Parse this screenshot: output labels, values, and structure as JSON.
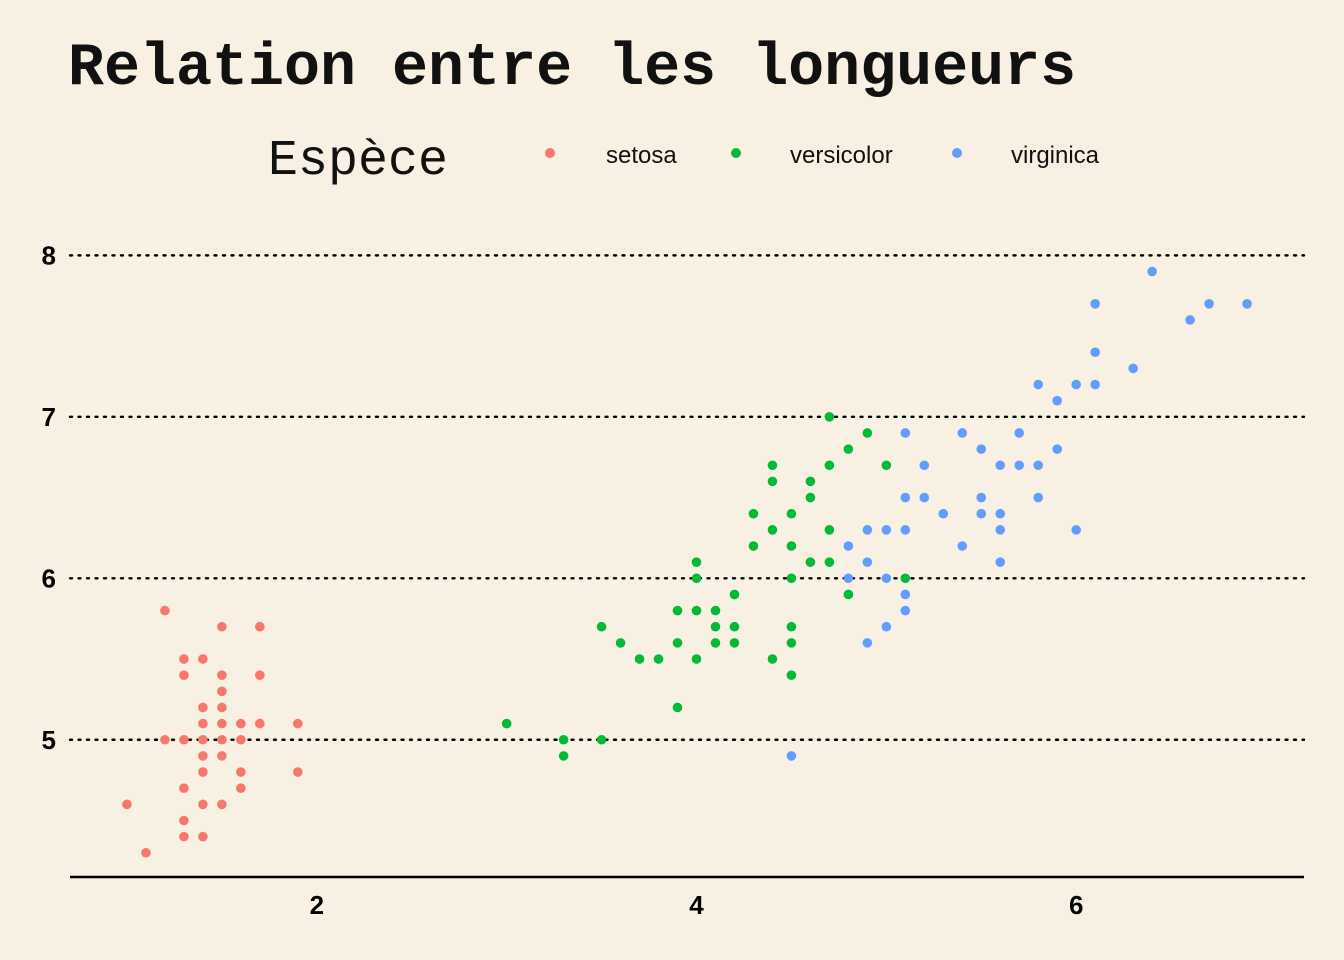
{
  "chart_data": {
    "type": "scatter",
    "title": "Relation entre les longueurs",
    "xlabel": "",
    "ylabel": "",
    "xlim": [
      0.7,
      7.2
    ],
    "ylim": [
      4.15,
      8.25
    ],
    "x_ticks": [
      2,
      4,
      6
    ],
    "y_ticks": [
      5,
      6,
      7,
      8
    ],
    "grid": "horizontal dotted major lines",
    "legend": {
      "title": "Espèce",
      "position": "top"
    },
    "series": [
      {
        "name": "setosa",
        "color": "#f8766d",
        "points": [
          [
            1.0,
            4.6
          ],
          [
            1.1,
            4.3
          ],
          [
            1.2,
            5.8
          ],
          [
            1.2,
            5.0
          ],
          [
            1.3,
            5.5
          ],
          [
            1.3,
            5.4
          ],
          [
            1.3,
            5.0
          ],
          [
            1.3,
            4.7
          ],
          [
            1.3,
            4.5
          ],
          [
            1.3,
            4.4
          ],
          [
            1.4,
            5.5
          ],
          [
            1.4,
            5.2
          ],
          [
            1.4,
            5.1
          ],
          [
            1.4,
            5.0
          ],
          [
            1.4,
            4.9
          ],
          [
            1.4,
            4.8
          ],
          [
            1.4,
            4.6
          ],
          [
            1.4,
            4.4
          ],
          [
            1.5,
            5.7
          ],
          [
            1.5,
            5.4
          ],
          [
            1.5,
            5.3
          ],
          [
            1.5,
            5.2
          ],
          [
            1.5,
            5.1
          ],
          [
            1.5,
            5.0
          ],
          [
            1.5,
            4.9
          ],
          [
            1.5,
            4.6
          ],
          [
            1.6,
            5.1
          ],
          [
            1.6,
            5.0
          ],
          [
            1.6,
            4.8
          ],
          [
            1.6,
            4.7
          ],
          [
            1.7,
            5.7
          ],
          [
            1.7,
            5.4
          ],
          [
            1.7,
            5.1
          ],
          [
            1.9,
            5.1
          ],
          [
            1.9,
            4.8
          ]
        ]
      },
      {
        "name": "versicolor",
        "color": "#00ba38",
        "points": [
          [
            3.0,
            5.1
          ],
          [
            3.3,
            5.0
          ],
          [
            3.3,
            4.9
          ],
          [
            3.5,
            5.7
          ],
          [
            3.5,
            5.0
          ],
          [
            3.6,
            5.6
          ],
          [
            3.7,
            5.5
          ],
          [
            3.8,
            5.5
          ],
          [
            3.9,
            5.8
          ],
          [
            3.9,
            5.6
          ],
          [
            3.9,
            5.2
          ],
          [
            4.0,
            6.1
          ],
          [
            4.0,
            6.0
          ],
          [
            4.0,
            5.8
          ],
          [
            4.0,
            5.5
          ],
          [
            4.1,
            5.8
          ],
          [
            4.1,
            5.7
          ],
          [
            4.1,
            5.6
          ],
          [
            4.2,
            5.9
          ],
          [
            4.2,
            5.7
          ],
          [
            4.2,
            5.6
          ],
          [
            4.3,
            6.4
          ],
          [
            4.3,
            6.2
          ],
          [
            4.4,
            6.7
          ],
          [
            4.4,
            6.6
          ],
          [
            4.4,
            6.3
          ],
          [
            4.4,
            5.5
          ],
          [
            4.5,
            6.4
          ],
          [
            4.5,
            6.2
          ],
          [
            4.5,
            6.0
          ],
          [
            4.5,
            5.7
          ],
          [
            4.5,
            5.6
          ],
          [
            4.5,
            5.4
          ],
          [
            4.6,
            6.6
          ],
          [
            4.6,
            6.5
          ],
          [
            4.6,
            6.1
          ],
          [
            4.7,
            7.0
          ],
          [
            4.7,
            6.7
          ],
          [
            4.7,
            6.3
          ],
          [
            4.7,
            6.1
          ],
          [
            4.8,
            6.8
          ],
          [
            4.8,
            5.9
          ],
          [
            4.9,
            6.9
          ],
          [
            5.0,
            6.7
          ],
          [
            5.1,
            6.0
          ]
        ]
      },
      {
        "name": "virginica",
        "color": "#619cff",
        "points": [
          [
            4.5,
            4.9
          ],
          [
            4.8,
            6.2
          ],
          [
            4.8,
            6.0
          ],
          [
            4.9,
            6.3
          ],
          [
            4.9,
            6.1
          ],
          [
            4.9,
            5.6
          ],
          [
            5.0,
            6.3
          ],
          [
            5.0,
            6.0
          ],
          [
            5.0,
            5.7
          ],
          [
            5.1,
            6.9
          ],
          [
            5.1,
            6.5
          ],
          [
            5.1,
            6.3
          ],
          [
            5.1,
            5.9
          ],
          [
            5.1,
            5.8
          ],
          [
            5.2,
            6.7
          ],
          [
            5.2,
            6.5
          ],
          [
            5.3,
            6.4
          ],
          [
            5.4,
            6.9
          ],
          [
            5.4,
            6.2
          ],
          [
            5.5,
            6.8
          ],
          [
            5.5,
            6.5
          ],
          [
            5.5,
            6.4
          ],
          [
            5.6,
            6.7
          ],
          [
            5.6,
            6.4
          ],
          [
            5.6,
            6.3
          ],
          [
            5.6,
            6.1
          ],
          [
            5.7,
            6.9
          ],
          [
            5.7,
            6.7
          ],
          [
            5.8,
            7.2
          ],
          [
            5.8,
            6.7
          ],
          [
            5.8,
            6.5
          ],
          [
            5.9,
            7.1
          ],
          [
            5.9,
            6.8
          ],
          [
            6.0,
            7.2
          ],
          [
            6.0,
            6.3
          ],
          [
            6.1,
            7.7
          ],
          [
            6.1,
            7.4
          ],
          [
            6.1,
            7.2
          ],
          [
            6.3,
            7.3
          ],
          [
            6.4,
            7.9
          ],
          [
            6.6,
            7.6
          ],
          [
            6.7,
            7.7
          ],
          [
            6.9,
            7.7
          ]
        ]
      }
    ]
  }
}
